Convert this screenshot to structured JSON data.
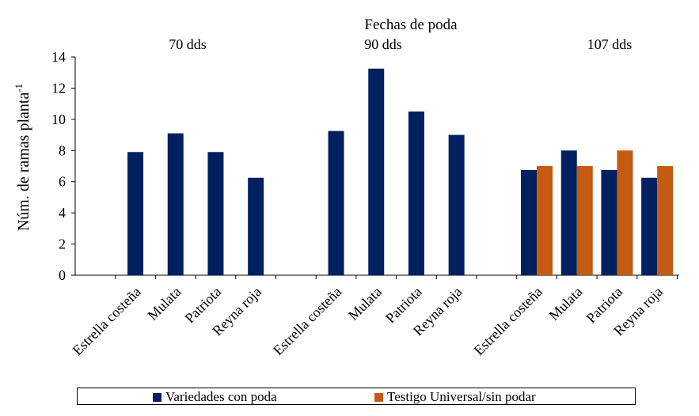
{
  "chart_data": {
    "type": "bar",
    "title": "Fechas de poda",
    "xlabel": "",
    "ylabel": "Núm. de ramas planta",
    "ylabel_superscript": "-1",
    "ylim": [
      0,
      14
    ],
    "yticks": [
      0,
      2,
      4,
      6,
      8,
      10,
      12,
      14
    ],
    "grid": false,
    "legend_position": "bottom",
    "groups": [
      {
        "label": "70 dds",
        "categories": [
          "Estrella costeña",
          "Mulata",
          "Patriota",
          "Reyna roja"
        ],
        "series": [
          {
            "name": "Variedades con poda",
            "values": [
              7.9,
              9.1,
              7.9,
              6.25
            ]
          }
        ]
      },
      {
        "label": "90 dds",
        "categories": [
          "Estrella costeña",
          "Mulata",
          "Patriota",
          "Reyna roja"
        ],
        "series": [
          {
            "name": "Variedades con poda",
            "values": [
              9.25,
              13.25,
              10.5,
              9.0
            ]
          }
        ]
      },
      {
        "label": "107  dds",
        "categories": [
          "Estrella costeña",
          "Mulata",
          "Patriota",
          "Reyna roja"
        ],
        "series": [
          {
            "name": "Variedades con poda",
            "values": [
              6.75,
              8.0,
              6.75,
              6.25
            ]
          },
          {
            "name": "Testigo Universal/sin podar",
            "values": [
              7.0,
              7.0,
              8.0,
              7.0
            ]
          }
        ]
      }
    ],
    "legend": [
      {
        "name": "Variedades con poda",
        "color": "#002060"
      },
      {
        "name": "Testigo Universal/sin podar",
        "color": "#C55A11"
      }
    ]
  }
}
